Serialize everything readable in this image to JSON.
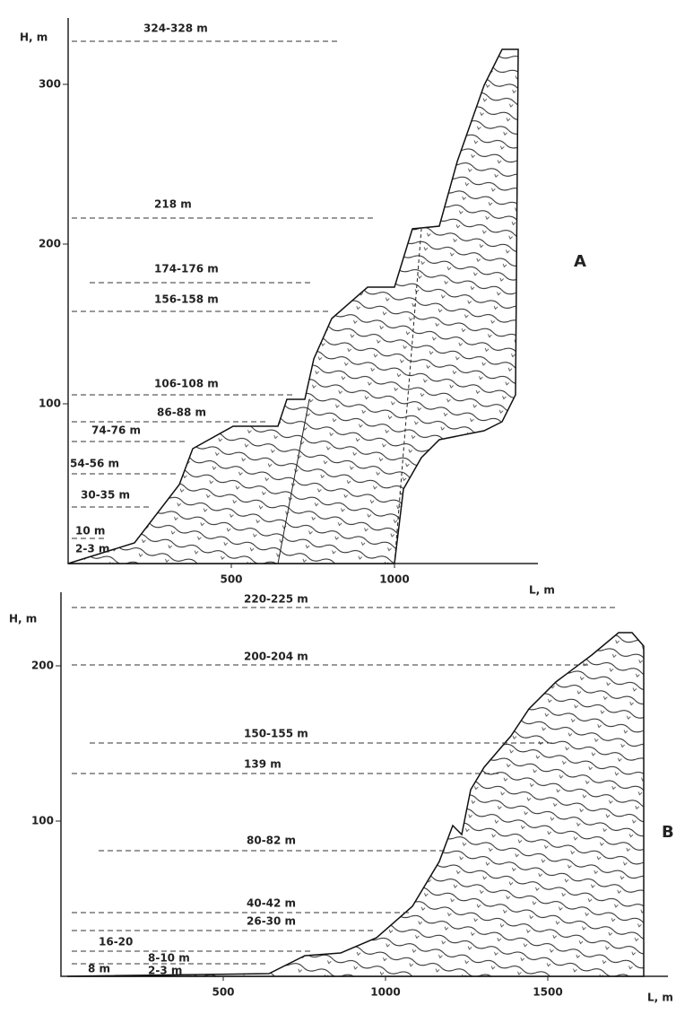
{
  "panels": [
    {
      "letter": "A",
      "y_label": "H, m",
      "x_label": "L, m",
      "yticks": [
        300,
        200,
        100
      ],
      "xticks": [
        500,
        1000
      ],
      "terraces": [
        "324-328 m",
        "218 m",
        "174-176 m",
        "156-158 m",
        "106-108 m",
        "86-88 m",
        "74-76 m",
        "54-56 m",
        "30-35 m",
        "10 m",
        "2-3 m"
      ]
    },
    {
      "letter": "B",
      "y_label": "H, m",
      "x_label": "L, m",
      "yticks": [
        200,
        100
      ],
      "xticks": [
        500,
        1000,
        1500
      ],
      "terraces": [
        "220-225 m",
        "200-204 m",
        "150-155 m",
        "139 m",
        "80-82 m",
        "40-42 m",
        "26-30 m",
        "16-20",
        "8-10 m",
        "2-3 m",
        "8 m"
      ]
    }
  ]
}
